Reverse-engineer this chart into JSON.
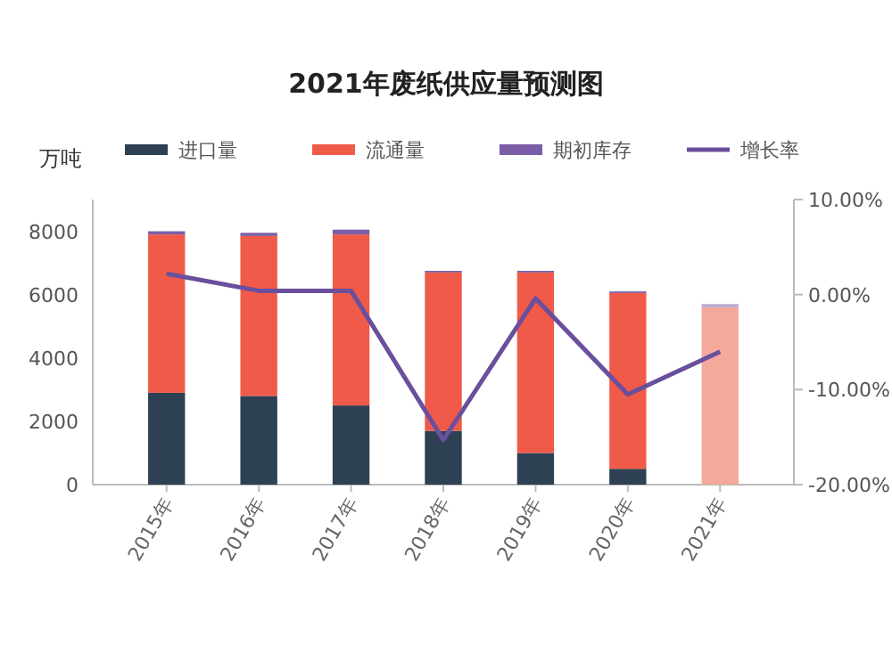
{
  "chart_data": {
    "type": "bar",
    "title": "2021年废纸供应量预测图",
    "ylabel": "万吨",
    "stacked": true,
    "legend": "top",
    "categories": [
      "2015年",
      "2016年",
      "2017年",
      "2018年",
      "2019年",
      "2020年",
      "2021年"
    ],
    "series": [
      {
        "name": "进口量",
        "color": "#2e4053",
        "values": [
          2900,
          2800,
          2500,
          1700,
          1000,
          500,
          null
        ]
      },
      {
        "name": "流通量",
        "color": "#f05a48",
        "colors": [
          "#f05a48",
          "#f05a48",
          "#f05a48",
          "#f05a48",
          "#f05a48",
          "#f05a48",
          "#f4a99c"
        ],
        "values": [
          5000,
          5050,
          5400,
          5000,
          5700,
          5550,
          5600
        ]
      },
      {
        "name": "期初库存",
        "color": "#7b5ea7",
        "colors": [
          "#7b5ea7",
          "#7b5ea7",
          "#7b5ea7",
          "#7b5ea7",
          "#7b5ea7",
          "#7b5ea7",
          "#b9a8d4"
        ],
        "values": [
          100,
          100,
          150,
          50,
          50,
          50,
          100
        ]
      },
      {
        "name": "增长率",
        "type": "line",
        "axis": "y2",
        "color": "#6a4f9c",
        "values": [
          2.2,
          0.4,
          0.4,
          -15.3,
          -0.4,
          -10.5,
          -6
        ]
      }
    ],
    "ylim": [
      0,
      9000
    ],
    "yticks": [
      0,
      2000,
      4000,
      6000,
      8000
    ],
    "y2lim": [
      -20,
      10
    ],
    "y2ticks": [
      {
        "value": 10,
        "label": "10.00%"
      },
      {
        "value": 0,
        "label": "0.00%"
      },
      {
        "value": -10,
        "label": "-10.00%"
      },
      {
        "value": -20,
        "label": "-20.00%"
      }
    ]
  }
}
